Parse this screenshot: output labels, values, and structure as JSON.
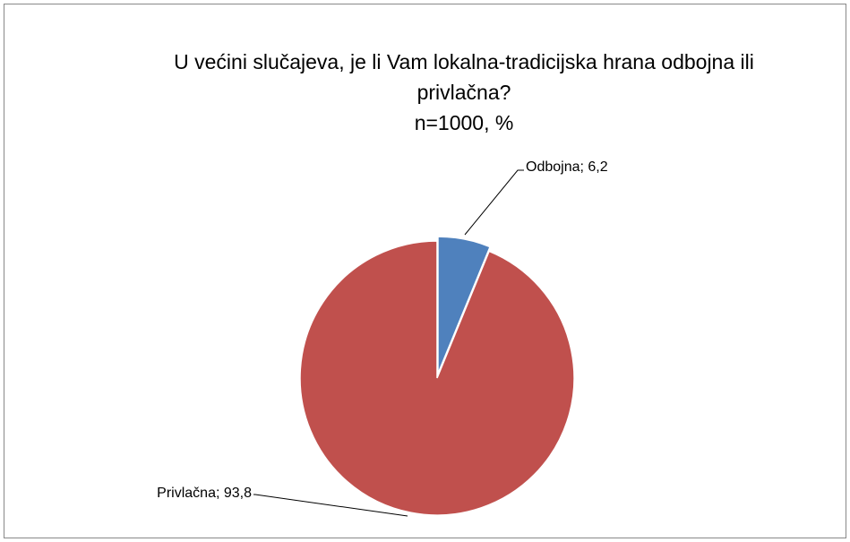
{
  "chart_data": {
    "type": "pie",
    "title": "U većini slučajeva, je li Vam lokalna-tradicijska hrana odbojna ili privlačna?",
    "subtitle": "n=1000, %",
    "categories": [
      "Odbojna",
      "Privlačna"
    ],
    "values": [
      6.2,
      93.8
    ],
    "value_labels": [
      "Odbojna; 6,2",
      "Privlačna; 93,8"
    ],
    "colors": [
      "#4f81bd",
      "#c0504d"
    ]
  }
}
